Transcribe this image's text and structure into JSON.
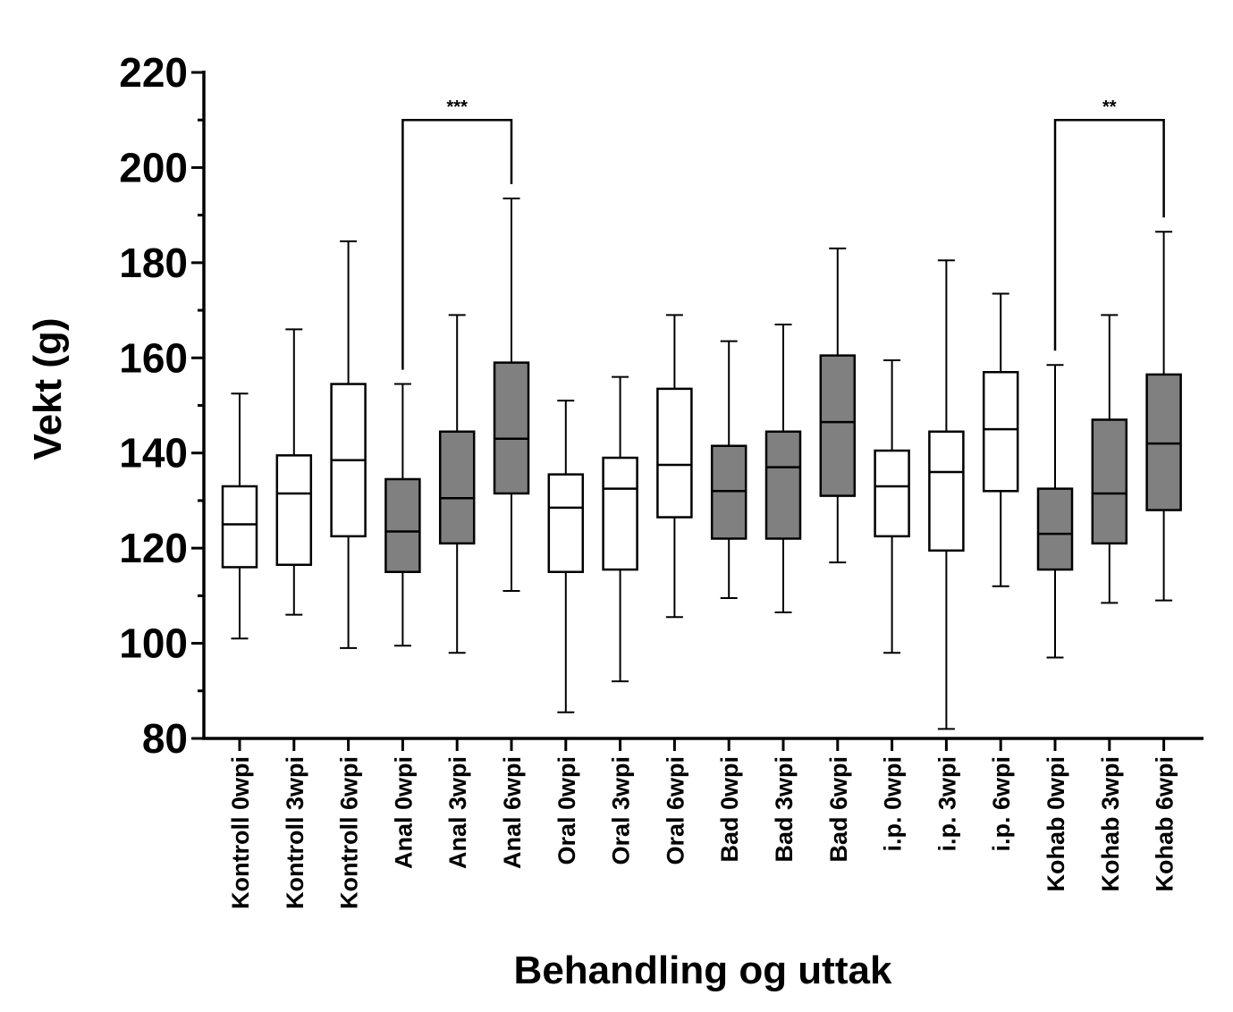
{
  "chart_data": {
    "type": "boxplot",
    "xlabel": "Behandling og uttak",
    "ylabel": "Vekt (g)",
    "ylim": [
      80,
      220
    ],
    "yticks": [
      80,
      100,
      120,
      140,
      160,
      180,
      200,
      220
    ],
    "grid": false,
    "colors": {
      "open": "#ffffff",
      "filled": "#808080",
      "stroke": "#000000"
    },
    "categories": [
      "Kontroll 0wpi",
      "Kontroll 3wpi",
      "Kontroll 6wpi",
      "Anal 0wpi",
      "Anal 3wpi",
      "Anal 6wpi",
      "Oral 0wpi",
      "Oral 3wpi",
      "Oral 6wpi",
      "Bad 0wpi",
      "Bad 3wpi",
      "Bad 6wpi",
      "i.p. 0wpi",
      "i.p. 3wpi",
      "i.p. 6wpi",
      "Kohab 0wpi",
      "Kohab 3wpi",
      "Kohab 6wpi"
    ],
    "boxes": [
      {
        "min": 101,
        "q1": 116,
        "median": 125,
        "q3": 133,
        "max": 152.5,
        "filled": false
      },
      {
        "min": 106,
        "q1": 116.5,
        "median": 131.5,
        "q3": 139.5,
        "max": 166,
        "filled": false
      },
      {
        "min": 99,
        "q1": 122.5,
        "median": 138.5,
        "q3": 154.5,
        "max": 184.5,
        "filled": false
      },
      {
        "min": 99.5,
        "q1": 115,
        "median": 123.5,
        "q3": 134.5,
        "max": 154.5,
        "filled": true
      },
      {
        "min": 98,
        "q1": 121,
        "median": 130.5,
        "q3": 144.5,
        "max": 169,
        "filled": true
      },
      {
        "min": 111,
        "q1": 131.5,
        "median": 143,
        "q3": 159,
        "max": 193.5,
        "filled": true
      },
      {
        "min": 85.5,
        "q1": 115,
        "median": 128.5,
        "q3": 135.5,
        "max": 151,
        "filled": false
      },
      {
        "min": 92,
        "q1": 115.5,
        "median": 132.5,
        "q3": 139,
        "max": 156,
        "filled": false
      },
      {
        "min": 105.5,
        "q1": 126.5,
        "median": 137.5,
        "q3": 153.5,
        "max": 169,
        "filled": false
      },
      {
        "min": 109.5,
        "q1": 122,
        "median": 132,
        "q3": 141.5,
        "max": 163.5,
        "filled": true
      },
      {
        "min": 106.5,
        "q1": 122,
        "median": 137,
        "q3": 144.5,
        "max": 167,
        "filled": true
      },
      {
        "min": 117,
        "q1": 131,
        "median": 146.5,
        "q3": 160.5,
        "max": 183,
        "filled": true
      },
      {
        "min": 98,
        "q1": 122.5,
        "median": 133,
        "q3": 140.5,
        "max": 159.5,
        "filled": false
      },
      {
        "min": 82,
        "q1": 119.5,
        "median": 136,
        "q3": 144.5,
        "max": 180.5,
        "filled": false
      },
      {
        "min": 112,
        "q1": 132,
        "median": 145,
        "q3": 157,
        "max": 173.5,
        "filled": false
      },
      {
        "min": 97,
        "q1": 115.5,
        "median": 123,
        "q3": 132.5,
        "max": 158.5,
        "filled": true
      },
      {
        "min": 108.5,
        "q1": 121,
        "median": 131.5,
        "q3": 147,
        "max": 169,
        "filled": true
      },
      {
        "min": 109,
        "q1": 128,
        "median": 142,
        "q3": 156.5,
        "max": 186.5,
        "filled": true
      }
    ],
    "significance": [
      {
        "from": 3,
        "to": 5,
        "label": "***",
        "bracket_y": 210,
        "left_drop": 157.5,
        "right_drop": 196.5
      },
      {
        "from": 15,
        "to": 17,
        "label": "**",
        "bracket_y": 210,
        "left_drop": 161.5,
        "right_drop": 189.5
      }
    ]
  }
}
